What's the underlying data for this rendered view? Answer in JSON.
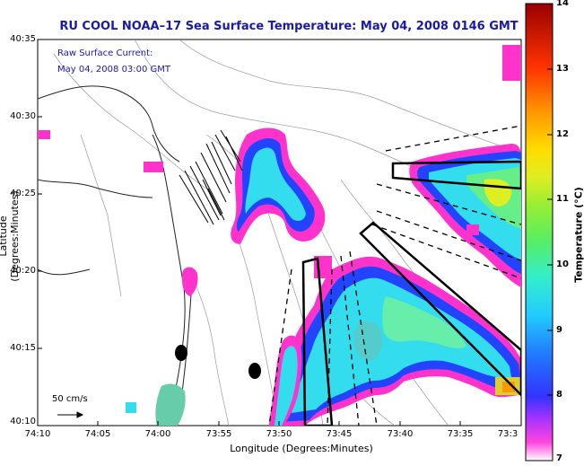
{
  "title": "RU COOL  NOAA–17  Sea Surface Temperature:  May 04, 2008 0146 GMT",
  "axes": {
    "ylabel": "Latitude (Degrees:Minutes)",
    "xlabel": "Longitude (Degrees:Minutes)",
    "yticks": [
      "40:35",
      "40:30",
      "40:25",
      "40:20",
      "40:15",
      "40:10"
    ],
    "xticks": [
      "74:10",
      "74:05",
      "74:00",
      "73:55",
      "73:50",
      "73:45",
      "73:40",
      "73:35",
      "73:3"
    ]
  },
  "annotations": {
    "raw_current": "Raw Surface Current:",
    "current_time": "May 04, 2008 03:00 GMT",
    "scale": "50 cm/s"
  },
  "colorbar": {
    "label": "Temperature (°C)",
    "ticks": [
      "14",
      "13",
      "12",
      "11",
      "10",
      "9",
      "8",
      "7"
    ],
    "range": [
      7,
      14
    ]
  },
  "colors": {
    "title": "#1a1aa8",
    "magenta": "#ff33cc",
    "blue": "#2244ff",
    "cyan": "#33ddee",
    "teal": "#66ccaa"
  }
}
